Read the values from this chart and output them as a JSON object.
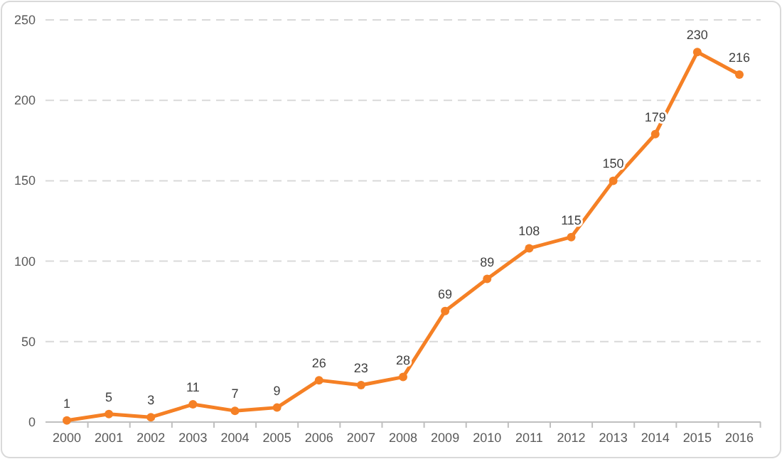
{
  "chart_data": {
    "type": "line",
    "categories": [
      "2000",
      "2001",
      "2002",
      "2003",
      "2004",
      "2005",
      "2006",
      "2007",
      "2008",
      "2009",
      "2010",
      "2011",
      "2012",
      "2013",
      "2014",
      "2015",
      "2016"
    ],
    "series": [
      {
        "color": "#f58025",
        "values": [
          1,
          5,
          3,
          11,
          7,
          9,
          26,
          23,
          28,
          69,
          89,
          108,
          115,
          150,
          179,
          230,
          216
        ]
      }
    ],
    "ylim": [
      0,
      250
    ],
    "yticks": [
      0,
      50,
      100,
      150,
      200,
      250
    ],
    "grid": "y",
    "marker": "circle",
    "line_style": "solid",
    "data_labels": true
  }
}
